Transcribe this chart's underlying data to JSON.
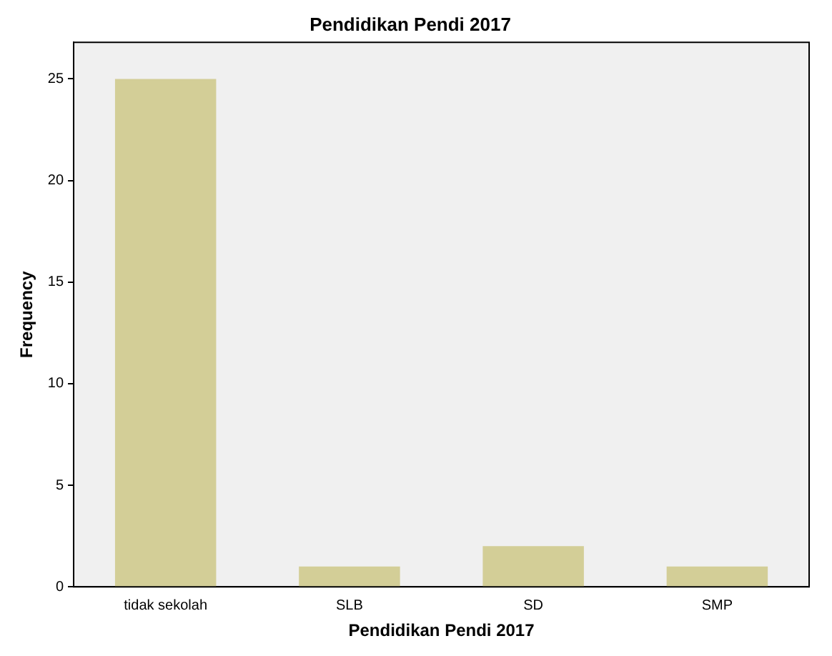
{
  "chart_data": {
    "type": "bar",
    "title": "Pendidikan Pendi 2017",
    "xlabel": "Pendidikan Pendi 2017",
    "ylabel": "Frequency",
    "categories": [
      "tidak sekolah",
      "SLB",
      "SD",
      "SMP"
    ],
    "values": [
      25,
      1,
      2,
      1
    ],
    "color": "#d3ce97",
    "ylim": [
      0,
      26.8
    ],
    "yticks": [
      0,
      5,
      10,
      15,
      20,
      25
    ],
    "grid": false,
    "legend": false
  }
}
